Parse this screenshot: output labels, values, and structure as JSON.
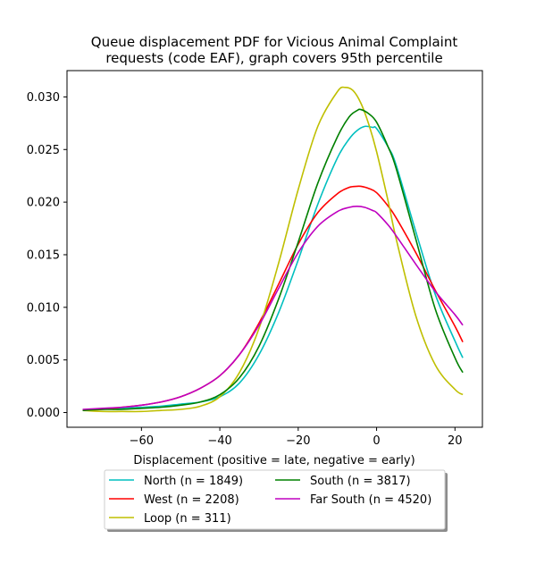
{
  "chart_data": {
    "type": "line",
    "title_line1": "Queue displacement PDF for Vicious Animal Complaint",
    "title_line2": "requests (code EAF), graph covers 95th percentile",
    "xlabel": "Displacement (positive = late, negative = early)",
    "ylabel": "",
    "xlim": [
      -79,
      27
    ],
    "ylim": [
      -0.0014,
      0.0325
    ],
    "x_ticks": [
      -60,
      -40,
      -20,
      0,
      20
    ],
    "x_tick_labels": [
      "−60",
      "−40",
      "−20",
      "0",
      "20"
    ],
    "y_ticks": [
      0.0,
      0.005,
      0.01,
      0.015,
      0.02,
      0.025,
      0.03
    ],
    "y_tick_labels": [
      "0.000",
      "0.005",
      "0.010",
      "0.015",
      "0.020",
      "0.025",
      "0.030"
    ],
    "grid": false,
    "legend_position": "below",
    "series": [
      {
        "name": "North (n = 1849)",
        "color": "#00bfbf",
        "x": [
          -75,
          -70,
          -65,
          -60,
          -55,
          -50,
          -45,
          -40,
          -35,
          -30,
          -25,
          -20,
          -15,
          -10,
          -7,
          -5,
          -3,
          -1,
          0,
          3,
          5,
          10,
          15,
          20,
          22
        ],
        "y": [
          0.0002,
          0.0003,
          0.0004,
          0.0005,
          0.0006,
          0.0008,
          0.001,
          0.0015,
          0.0028,
          0.0055,
          0.0095,
          0.0145,
          0.0198,
          0.0242,
          0.026,
          0.0268,
          0.0272,
          0.0271,
          0.027,
          0.0252,
          0.0235,
          0.0172,
          0.0112,
          0.0068,
          0.0052
        ]
      },
      {
        "name": "West (n = 2208)",
        "color": "#ff0000",
        "x": [
          -75,
          -70,
          -65,
          -60,
          -55,
          -50,
          -45,
          -40,
          -35,
          -30,
          -25,
          -20,
          -15,
          -10,
          -7,
          -5,
          -4,
          -2,
          0,
          3,
          5,
          10,
          15,
          20,
          22
        ],
        "y": [
          0.0002,
          0.0003,
          0.0005,
          0.0007,
          0.001,
          0.0015,
          0.0023,
          0.0035,
          0.0055,
          0.0085,
          0.0122,
          0.016,
          0.019,
          0.0208,
          0.0214,
          0.0215,
          0.0215,
          0.0213,
          0.0209,
          0.0196,
          0.0185,
          0.0152,
          0.0116,
          0.0082,
          0.0067
        ]
      },
      {
        "name": "Loop (n = 311)",
        "color": "#bfbf00",
        "x": [
          -75,
          -70,
          -65,
          -60,
          -55,
          -50,
          -45,
          -40,
          -35,
          -30,
          -25,
          -20,
          -15,
          -10,
          -8,
          -6,
          -4,
          -2,
          0,
          3,
          5,
          10,
          15,
          20,
          22
        ],
        "y": [
          0.0002,
          0.0001,
          0.0001,
          0.0001,
          0.0002,
          0.0003,
          0.0006,
          0.0015,
          0.0038,
          0.008,
          0.0142,
          0.0212,
          0.0272,
          0.0305,
          0.0309,
          0.0306,
          0.0294,
          0.0274,
          0.0248,
          0.02,
          0.0165,
          0.0092,
          0.0045,
          0.0022,
          0.0017
        ]
      },
      {
        "name": "South (n = 3817)",
        "color": "#008000",
        "x": [
          -75,
          -70,
          -65,
          -60,
          -55,
          -50,
          -45,
          -40,
          -35,
          -30,
          -25,
          -20,
          -15,
          -10,
          -7,
          -5,
          -4,
          -2,
          0,
          3,
          5,
          10,
          15,
          20,
          22
        ],
        "y": [
          0.0002,
          0.0003,
          0.0003,
          0.0004,
          0.0005,
          0.0007,
          0.001,
          0.0017,
          0.0033,
          0.0063,
          0.0108,
          0.0162,
          0.0218,
          0.0262,
          0.0281,
          0.0287,
          0.0288,
          0.0284,
          0.0276,
          0.0252,
          0.0232,
          0.0165,
          0.0098,
          0.0052,
          0.0038
        ]
      },
      {
        "name": "Far South (n = 4520)",
        "color": "#bf00bf",
        "x": [
          -75,
          -70,
          -65,
          -60,
          -55,
          -50,
          -45,
          -40,
          -35,
          -30,
          -25,
          -20,
          -15,
          -10,
          -7,
          -5,
          -3,
          -1,
          0,
          3,
          5,
          10,
          15,
          20,
          22
        ],
        "y": [
          0.0003,
          0.0004,
          0.0005,
          0.0007,
          0.001,
          0.0015,
          0.0023,
          0.0035,
          0.0055,
          0.0083,
          0.0118,
          0.0152,
          0.0177,
          0.0191,
          0.0195,
          0.0196,
          0.0195,
          0.0192,
          0.019,
          0.0178,
          0.0168,
          0.0141,
          0.0115,
          0.0093,
          0.0083
        ]
      }
    ]
  }
}
